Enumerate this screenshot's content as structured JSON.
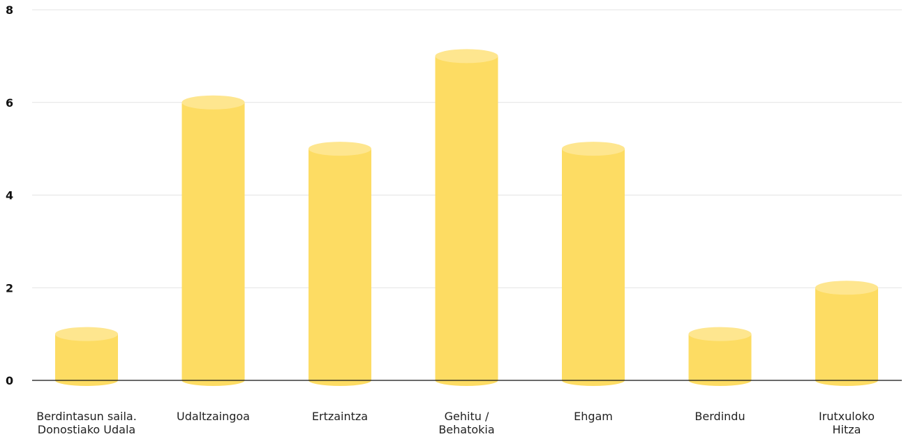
{
  "chart_data": {
    "type": "bar",
    "style": "cylinder",
    "categories": [
      [
        "Berdintasun saila.",
        "Donostiako Udala"
      ],
      [
        "Udaltzaingoa"
      ],
      [
        "Ertzaintza"
      ],
      [
        "Gehitu /",
        "Behatokia"
      ],
      [
        "Ehgam"
      ],
      [
        "Berdindu"
      ],
      [
        "Irutxuloko",
        "Hitza"
      ]
    ],
    "values": [
      1,
      6,
      5,
      7,
      5,
      1,
      2
    ],
    "yticks": [
      "0",
      "2",
      "4",
      "6",
      "8"
    ],
    "ylim": [
      0,
      8
    ],
    "grid": true,
    "colors": {
      "bar": "#FDDC63",
      "bar_top": "#FEE68F",
      "grid": "#e3e3e3",
      "axis": "#111111"
    }
  }
}
